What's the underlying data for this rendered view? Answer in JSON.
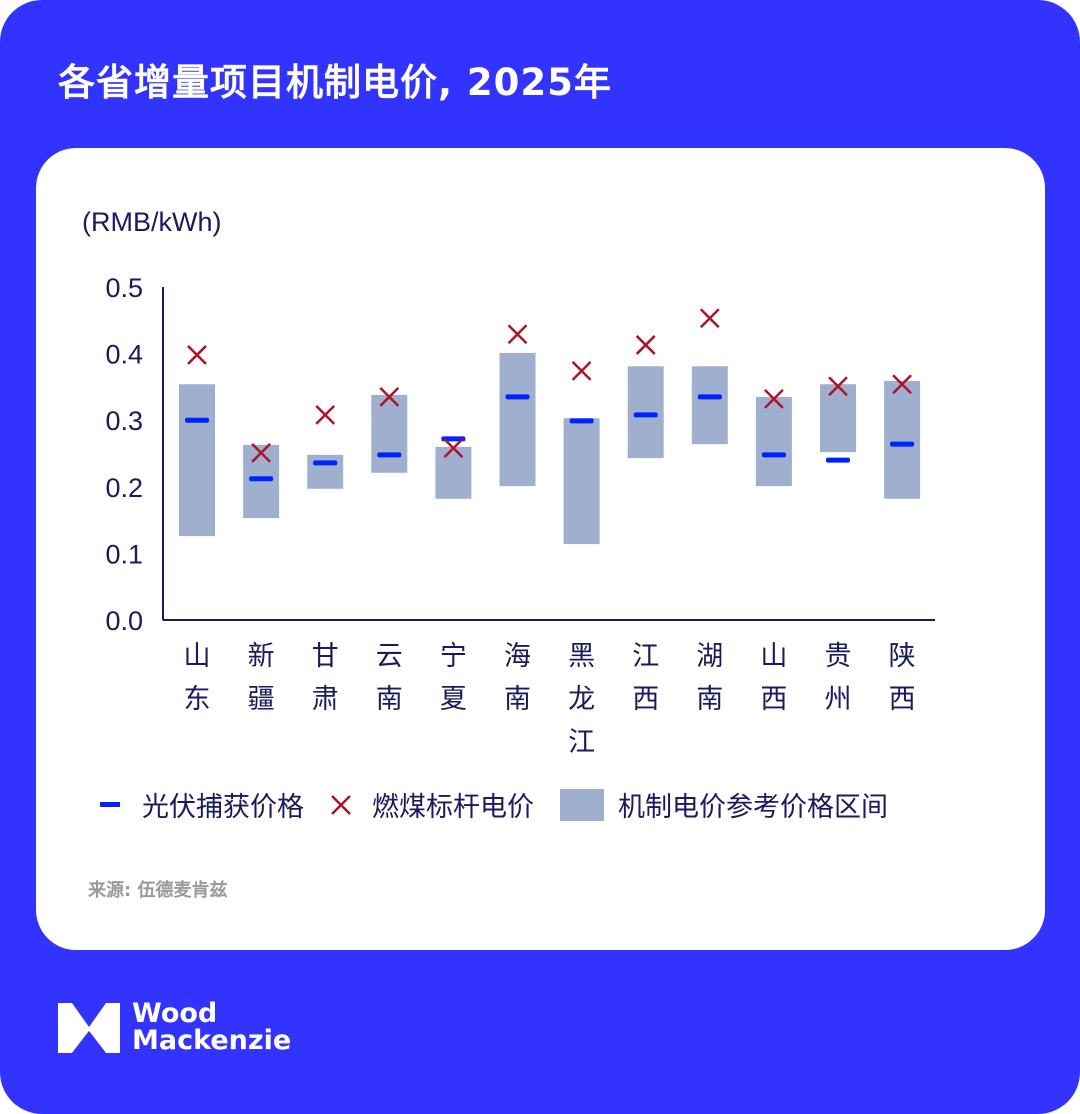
{
  "title": "各省增量项目机制电价, 2025年",
  "chart_data": {
    "type": "range-bar-with-markers",
    "title": "各省增量项目机制电价, 2025年",
    "ylabel": "(RMB/kWh)",
    "ylim": [
      0,
      0.5
    ],
    "yticks": [
      "0.0",
      "0.1",
      "0.2",
      "0.3",
      "0.4",
      "0.5"
    ],
    "grid": false,
    "legend_placement": "bottom",
    "categories": [
      "山东",
      "新疆",
      "甘肃",
      "云南",
      "宁夏",
      "海南",
      "黑龙江",
      "江西",
      "湖南",
      "山西",
      "贵州",
      "陕西"
    ],
    "series": [
      {
        "name": "光伏捕获价格",
        "kind": "dash",
        "color": "#0022ff",
        "values": [
          0.3,
          0.212,
          0.236,
          0.248,
          0.272,
          0.335,
          0.299,
          0.308,
          0.335,
          0.248,
          0.24,
          0.264
        ]
      },
      {
        "name": "燃煤标杆电价",
        "kind": "x-marker",
        "color": "#b0122a",
        "values": [
          0.398,
          0.251,
          0.308,
          0.335,
          0.258,
          0.429,
          0.374,
          0.413,
          0.453,
          0.332,
          0.351,
          0.354
        ]
      },
      {
        "name": "机制电价参考价格区间",
        "kind": "range",
        "color": "#9fb0cf",
        "low": [
          0.126,
          0.153,
          0.197,
          0.221,
          0.182,
          0.201,
          0.114,
          0.243,
          0.264,
          0.201,
          0.252,
          0.182
        ],
        "high": [
          0.354,
          0.263,
          0.248,
          0.338,
          0.26,
          0.401,
          0.303,
          0.381,
          0.381,
          0.335,
          0.354,
          0.359
        ]
      }
    ]
  },
  "source": "来源: 伍德麦肯兹",
  "logo": {
    "line1": "Wood",
    "line2": "Mackenzie"
  },
  "colors": {
    "background": "#3333ff",
    "axis": "#1a1a5e"
  }
}
